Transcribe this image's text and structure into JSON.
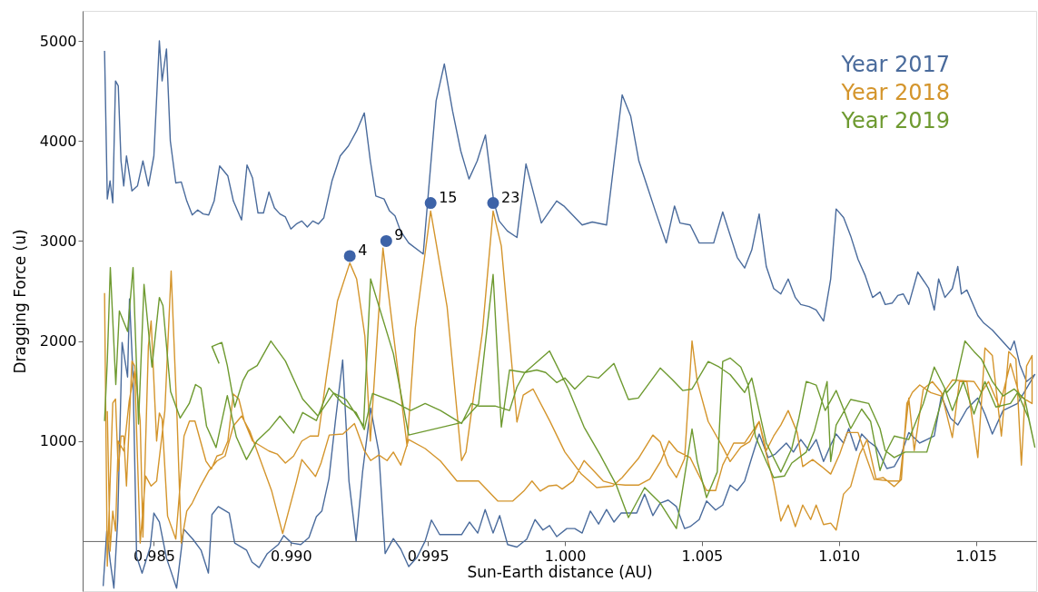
{
  "chart_data": {
    "type": "line",
    "xlabel": "Sun-Earth distance (AU)",
    "ylabel": "Dragging Force (u)",
    "xlim": [
      0.9824,
      1.0172
    ],
    "ylim": [
      -500,
      5300
    ],
    "xticks": [
      0.985,
      {
        "value": 0.99,
        "label": "0.990"
      },
      0.995,
      {
        "value": 1,
        "label": "1.000"
      },
      1.005,
      {
        "value": 1.01,
        "label": "1.010"
      },
      1.015
    ],
    "yticks": [
      1000,
      2000,
      3000,
      4000,
      5000
    ],
    "legend": "top right",
    "series": [
      {
        "name": "Year 2017",
        "color": "#4a6b9c",
        "marker": "none",
        "x": [
          0.9832,
          0.9833,
          0.9834,
          0.9835,
          0.9836,
          0.9837,
          0.9838,
          0.9839,
          0.984,
          0.9842,
          0.9844,
          0.9846,
          0.9848,
          0.985,
          0.9852,
          0.9853,
          0.98546,
          0.9856,
          0.9858,
          0.986,
          0.9862,
          0.9864,
          0.9866,
          0.9868,
          0.987,
          0.9872,
          0.9874,
          0.9877,
          0.9879,
          0.9882,
          0.9884,
          0.9886,
          0.9888,
          0.989,
          0.9892,
          0.9894,
          0.9896,
          0.9898,
          0.99,
          0.9902,
          0.9904,
          0.9906,
          0.9908,
          0.991,
          0.9912,
          0.9915,
          0.9918,
          0.9921,
          0.9924,
          0.99268,
          0.9929,
          0.9931,
          0.9934,
          0.9936,
          0.9938,
          0.994,
          0.9943,
          0.99483,
          0.9953,
          0.9956,
          0.9959,
          0.9962,
          0.9965,
          0.9968,
          0.9971,
          0.9974,
          0.9976,
          0.9979,
          0.99825,
          0.99858,
          0.99914,
          0.9997,
          0.99996,
          1.00063,
          1.001,
          1.00152,
          1.00209,
          1.0024,
          1.0027,
          1.003,
          1.0033,
          1.0037,
          1.004,
          1.0042,
          1.00457,
          1.0049,
          1.00543,
          1.00576,
          1.00629,
          1.00656,
          1.00682,
          1.00709,
          1.00735,
          1.00762,
          1.00788,
          1.00815,
          1.00841,
          1.00861,
          1.00891,
          1.00917,
          1.00944,
          1.0097,
          1.0099,
          1.01017,
          1.01043,
          1.0107,
          1.01096,
          1.01123,
          1.0115,
          1.01169,
          1.01195,
          1.01215,
          1.01235,
          1.01255,
          1.01288,
          1.01328,
          1.01348,
          1.01364,
          1.01387,
          1.01414,
          1.01434,
          1.01447,
          1.01467,
          1.01507,
          1.01527,
          1.0156,
          1.01626,
          1.0164,
          1.0166,
          1.01685,
          1.01715,
          1.01652,
          1.01599,
          1.0156,
          1.01533,
          1.01507,
          1.01467,
          1.01434,
          1.01407,
          1.01374,
          1.01348,
          1.01321,
          1.01295,
          1.01255,
          1.01228,
          1.01202,
          1.01175,
          1.01136,
          1.01109,
          1.01083,
          1.01063,
          1.01036,
          1.01017,
          1.0099,
          1.0097,
          1.00944,
          1.00917,
          1.00891,
          1.00861,
          1.00834,
          1.00808,
          1.00768,
          1.00742,
          1.00709,
          1.00682,
          1.00656,
          1.00629,
          1.00603,
          1.00576,
          1.0055,
          1.00517,
          1.0049,
          1.00457,
          1.00437,
          1.00407,
          1.00377,
          1.00348,
          1.00321,
          1.00291,
          1.00262,
          1.00232,
          1.00205,
          1.00179,
          1.00152,
          1.00123,
          1.00093,
          1.00063,
          1.00036,
          1.00007,
          0.9997,
          0.99944,
          0.9992,
          0.99891,
          0.99861,
          0.99825,
          0.99791,
          0.99762,
          0.99738,
          0.99709,
          0.99682,
          0.99652,
          0.99623,
          0.99543,
          0.99513,
          0.9949,
          0.9946,
          0.9943,
          0.99401,
          0.99374,
          0.99344,
          0.99321,
          0.99291,
          0.99262,
          0.99238,
          0.99212,
          0.99189,
          0.99162,
          0.99139,
          0.99113,
          0.99093,
          0.99066,
          0.99036,
          0.99003,
          0.98974,
          0.98954,
          0.98914,
          0.98884,
          0.98858,
          0.98838,
          0.98795,
          0.98775,
          0.98735,
          0.98712,
          0.98699,
          0.98672,
          0.98642,
          0.98609,
          0.98583,
          0.98546,
          0.9852,
          0.985,
          0.98487,
          0.98457,
          0.98437,
          0.98424,
          0.98411,
          0.98404,
          0.98384,
          0.98368,
          0.98354,
          0.98341,
          0.98328,
          0.98315
        ],
        "values": [
          4900,
          3420,
          3600,
          3380,
          4600,
          4550,
          3800,
          3550,
          3850,
          3500,
          3550,
          3800,
          3550,
          3850,
          5000,
          4600,
          4920,
          4000,
          3580,
          3590,
          3400,
          3260,
          3310,
          3270,
          3260,
          3400,
          3750,
          3650,
          3400,
          3210,
          3760,
          3630,
          3280,
          3280,
          3490,
          3330,
          3270,
          3240,
          3120,
          3170,
          3200,
          3140,
          3200,
          3170,
          3230,
          3600,
          3850,
          3950,
          4100,
          4280,
          3800,
          3450,
          3420,
          3300,
          3250,
          3100,
          2980,
          2870,
          4400,
          4770,
          4300,
          3900,
          3620,
          3800,
          4060,
          3400,
          3200,
          3100,
          3035,
          3770,
          3180,
          3400,
          3350,
          3160,
          3190,
          3160,
          4460,
          4250,
          3800,
          3550,
          3300,
          2980,
          3350,
          3180,
          3160,
          2980,
          2980,
          3290,
          2835,
          2730,
          2910,
          3270,
          2745,
          2525,
          2470,
          2620,
          2435,
          2365,
          2345,
          2310,
          2200,
          2620,
          3320,
          3235,
          3050,
          2815,
          2655,
          2435,
          2490,
          2365,
          2380,
          2455,
          2470,
          2365,
          2690,
          2525,
          2310,
          2620,
          2435,
          2525,
          2745,
          2470,
          2510,
          2255,
          2185,
          2110,
          1910,
          2000,
          1765,
          1595,
          1665,
          1375,
          1305,
          1070,
          1270,
          1430,
          1320,
          1160,
          1230,
          1450,
          1050,
          1015,
          980,
          1085,
          870,
          745,
          725,
          940,
          995,
          1070,
          905,
          1125,
          980,
          1070,
          960,
          795,
          1015,
          905,
          1015,
          890,
          980,
          870,
          835,
          1070,
          835,
          600,
          505,
          560,
          360,
          310,
          400,
          215,
          145,
          125,
          345,
          410,
          380,
          255,
          470,
          280,
          280,
          280,
          190,
          315,
          170,
          300,
          80,
          125,
          125,
          45,
          155,
          110,
          215,
          20,
          -60,
          -35,
          255,
          80,
          315,
          80,
          190,
          65,
          65,
          210,
          0,
          -165,
          -255,
          -80,
          25,
          -125,
          890,
          1330,
          700,
          0,
          600,
          1810,
          1190,
          625,
          300,
          245,
          35,
          -35,
          -20,
          55,
          -35,
          -125,
          -265,
          -210,
          -90,
          -20,
          280,
          345,
          265,
          -320,
          -90,
          20,
          120,
          -470,
          -170,
          190,
          280,
          -55,
          -320,
          -155,
          1640,
          2420,
          1640,
          1985,
          210,
          -470,
          -210,
          100,
          -450
        ]
      },
      {
        "name": "Year 2018",
        "color": "#d4952c",
        "marker": "none",
        "x": [
          0.9832,
          0.9833,
          0.9835,
          0.9836,
          0.9837,
          0.9838,
          0.9839,
          0.984,
          0.9842,
          0.9843,
          0.9845,
          0.9846,
          0.9848,
          0.9849,
          0.9851,
          0.9852,
          0.9853,
          0.9855,
          0.9858,
          0.9861,
          0.9863,
          0.9865,
          0.9867,
          0.9869,
          0.9871,
          0.9873,
          0.9875,
          0.9877,
          0.9879,
          0.9881,
          0.9883,
          0.9886,
          0.9889,
          0.9892,
          0.9895,
          0.9898,
          0.9901,
          0.9904,
          0.9907,
          0.991,
          0.9913,
          0.9917,
          0.99215,
          0.9924,
          0.9927,
          0.9929,
          0.99336,
          0.99424,
          0.99454,
          0.9951,
          0.9957,
          0.99623,
          0.99639,
          0.99699,
          0.99738,
          0.99768,
          0.99825,
          0.99848,
          0.99884,
          0.99944,
          1.0,
          1.0006,
          1.00116,
          1.00175,
          1.00209,
          1.00268,
          1.00321,
          1.00348,
          1.00377,
          1.00407,
          1.00437,
          1.00464,
          1.00483,
          1.00523,
          1.00576,
          1.00603,
          1.00642,
          1.00675,
          1.00709,
          1.00735,
          1.00762,
          1.00788,
          1.00815,
          1.00841,
          1.00868,
          1.00897,
          1.00917,
          1.00944,
          1.0097,
          1.0099,
          1.01017,
          1.01043,
          1.01076,
          1.01103,
          1.01136,
          1.01189,
          1.01222,
          1.01255,
          1.01275,
          1.01308,
          1.01341,
          1.01374,
          1.01414,
          1.0144,
          1.01467,
          1.01507,
          1.01533,
          1.0156,
          1.01593,
          1.0162,
          1.01646,
          1.01666,
          1.01685,
          1.01705,
          1.01705,
          1.0166,
          1.01626,
          1.01586,
          1.01546,
          1.0152,
          1.01493,
          1.01414,
          1.01374,
          1.01335,
          1.01295,
          1.01268,
          1.01248,
          1.01228,
          1.01202,
          1.01162,
          1.01129,
          1.01096,
          1.0107,
          1.0103,
          1.01003,
          1.0097,
          1.00937,
          1.00904,
          1.00868,
          1.00848,
          1.00815,
          1.00788,
          1.00762,
          1.00735,
          1.00709,
          1.00656,
          1.00616,
          1.00576,
          1.0055,
          1.00517,
          1.00483,
          1.00457,
          1.0041,
          1.0038,
          1.0035,
          1.0031,
          1.0027,
          1.0022,
          1.0018,
          1.0014,
          1.0007,
          1.0003,
          0.9999,
          0.9997,
          0.9994,
          0.9991,
          0.9988,
          0.9985,
          0.9981,
          0.99755,
          0.99685,
          0.99606,
          0.99546,
          0.9949,
          0.9943,
          0.99401,
          0.99374,
          0.99351,
          0.99321,
          0.99291,
          0.99268,
          0.99232,
          0.9919,
          0.9914,
          0.9911,
          0.9909,
          0.9904,
          0.9902,
          0.9897,
          0.9893,
          0.9889,
          0.9885,
          0.9882,
          0.9879,
          0.9876,
          0.9873,
          0.987,
          0.9867,
          0.9864,
          0.9862,
          0.986,
          0.98585,
          0.98563,
          0.9854,
          0.9851,
          0.9849,
          0.9847,
          0.9845,
          0.9843,
          0.9841,
          0.9839,
          0.9837,
          0.9836,
          0.9835,
          0.9834,
          0.9833
        ],
        "values": [
          2480,
          -250,
          1380,
          1420,
          700,
          1050,
          1050,
          550,
          1800,
          1750,
          1200,
          40,
          1950,
          2200,
          1000,
          1280,
          1220,
          250,
          20,
          1050,
          1200,
          1200,
          1000,
          800,
          720,
          850,
          870,
          1000,
          1470,
          1420,
          1200,
          1000,
          950,
          900,
          870,
          780,
          850,
          1000,
          1050,
          1050,
          1650,
          2400,
          2780,
          2620,
          2050,
          1000,
          2930,
          950,
          2130,
          3300,
          2345,
          805,
          890,
          2090,
          3300,
          2950,
          1190,
          1460,
          1520,
          1205,
          890,
          670,
          535,
          550,
          635,
          825,
          1060,
          990,
          760,
          635,
          825,
          2000,
          1595,
          1195,
          940,
          795,
          940,
          995,
          1195,
          870,
          580,
          200,
          360,
          145,
          360,
          215,
          360,
          165,
          180,
          110,
          470,
          545,
          870,
          1015,
          615,
          600,
          600,
          1430,
          905,
          1520,
          1595,
          1485,
          1035,
          1595,
          1595,
          835,
          1930,
          1855,
          1050,
          1895,
          1820,
          760,
          1750,
          1855,
          1375,
          1450,
          1775,
          1340,
          1595,
          1485,
          1595,
          1610,
          1450,
          1485,
          1560,
          1485,
          1375,
          615,
          545,
          635,
          615,
          870,
          1085,
          1085,
          870,
          670,
          745,
          815,
          745,
          1085,
          1305,
          1160,
          1050,
          905,
          1195,
          980,
          980,
          760,
          505,
          505,
          690,
          835,
          900,
          1000,
          800,
          620,
          560,
          560,
          570,
          600,
          805,
          600,
          520,
          560,
          550,
          500,
          600,
          500,
          400,
          400,
          600,
          600,
          800,
          925,
          1015,
          760,
          890,
          805,
          860,
          805,
          905,
          1175,
          1070,
          1060,
          780,
          645,
          815,
          590,
          75,
          500,
          800,
          1100,
          1250,
          1150,
          850,
          800,
          700,
          550,
          380,
          300,
          -20,
          1200,
          2700,
          1300,
          600,
          550,
          650,
          -20,
          1700,
          1400,
          900,
          1000,
          100,
          300,
          -100,
          1300
        ]
      },
      {
        "name": "Year 2019",
        "color": "#6e9a30",
        "marker": "none",
        "x": [
          0.9832,
          0.9833,
          0.98341,
          0.98361,
          0.98374,
          0.98404,
          0.98424,
          0.98444,
          0.98464,
          0.98493,
          0.9852,
          0.98533,
          0.98561,
          0.98596,
          0.98629,
          0.98652,
          0.98672,
          0.98692,
          0.98727,
          0.98768,
          0.98801,
          0.98838,
          0.98877,
          0.9892,
          0.9896,
          0.9901,
          0.99043,
          0.99093,
          0.99139,
          0.99189,
          0.99238,
          0.99268,
          0.99298,
          0.99374,
          0.99437,
          0.9949,
          0.99546,
          0.99623,
          0.99659,
          0.99685,
          0.99745,
          0.99798,
          0.99825,
          0.99854,
          0.99897,
          0.9993,
          0.9997,
          1.0,
          1.00036,
          1.00083,
          1.00123,
          1.00179,
          1.00232,
          1.00268,
          1.00348,
          1.0039,
          1.0043,
          1.00464,
          1.00523,
          1.00563,
          1.00603,
          1.00656,
          1.00682,
          1.00735,
          1.00788,
          1.00828,
          1.00854,
          1.00881,
          1.00917,
          1.0095,
          1.0099,
          1.01017,
          1.01043,
          1.01083,
          1.01116,
          1.0115,
          1.01175,
          1.01202,
          1.01255,
          1.01308,
          1.01348,
          1.01394,
          1.01427,
          1.0146,
          1.01493,
          1.0152,
          1.0156,
          1.01599,
          1.0164,
          1.01679,
          1.01715,
          1.01692,
          1.01652,
          1.01626,
          1.01573,
          1.01533,
          1.01493,
          1.01454,
          1.01414,
          1.01387,
          1.01361,
          1.01321,
          1.01281,
          1.01242,
          1.01202,
          1.01169,
          1.0115,
          1.01109,
          1.01043,
          1.0099,
          1.0097,
          1.00957,
          1.00911,
          1.00881,
          1.00828,
          1.00801,
          1.00762,
          1.00735,
          1.00695,
          1.00669,
          1.00642,
          1.00603,
          1.00576,
          1.00556,
          1.00517,
          1.00483,
          1.00464,
          1.00407,
          1.00348,
          1.00291,
          1.00232,
          1.00186,
          1.00129,
          1.0007,
          1.00013,
          0.99944,
          0.99854,
          0.99798,
          0.99768,
          0.99738,
          0.99685,
          0.99623,
          0.9943,
          0.99374,
          0.99291,
          0.99265,
          0.99202,
          0.99156,
          0.99099,
          0.99043,
          0.9898,
          0.98927,
          0.98877,
          0.98844,
          0.98825,
          0.98795,
          0.98768,
          0.98748,
          0.98712,
          0.98738
        ],
        "values": [
          1200,
          1800,
          2735,
          1565,
          2300,
          2095,
          2735,
          1170,
          2565,
          1740,
          2435,
          2355,
          1495,
          1230,
          1375,
          1565,
          1530,
          1150,
          935,
          1455,
          1040,
          815,
          1005,
          1115,
          1250,
          1080,
          1285,
          1205,
          1530,
          1375,
          1285,
          1115,
          1475,
          1395,
          1305,
          1375,
          1305,
          1175,
          1375,
          1350,
          1350,
          1305,
          1540,
          1685,
          1710,
          1685,
          1585,
          1630,
          1520,
          1650,
          1630,
          1775,
          1415,
          1430,
          1730,
          1620,
          1505,
          1520,
          1795,
          1740,
          1665,
          1485,
          1630,
          980,
          690,
          925,
          1230,
          1595,
          1560,
          1305,
          1505,
          1320,
          1125,
          1320,
          1195,
          705,
          905,
          1050,
          1015,
          1375,
          1740,
          1485,
          1595,
          2000,
          1895,
          1820,
          1595,
          1450,
          1520,
          1415,
          940,
          1230,
          1485,
          1375,
          1340,
          1595,
          1270,
          1595,
          1305,
          1520,
          1270,
          890,
          890,
          890,
          835,
          905,
          1125,
          1375,
          1415,
          1160,
          795,
          1595,
          1105,
          890,
          780,
          650,
          635,
          795,
          1050,
          1560,
          1740,
          1830,
          1795,
          690,
          435,
          795,
          1120,
          125,
          380,
          535,
          235,
          570,
          860,
          1140,
          1520,
          1900,
          1685,
          1710,
          1140,
          2665,
          1370,
          1185,
          1060,
          1875,
          2620,
          1150,
          1415,
          1480,
          1250,
          1420,
          1800,
          2000,
          1755,
          1700,
          1605,
          1340,
          1755,
          1985,
          1945,
          1775
        ]
      },
      {
        "type": "scatter",
        "color": "#3d63a8",
        "marker": "circle",
        "x": [
          0.99215,
          0.99348,
          0.9951,
          0.99738
        ],
        "values": [
          2850,
          3000,
          3380,
          3380
        ]
      }
    ],
    "annotations": [
      {
        "text": "4",
        "x": 0.99215,
        "y": 2850
      },
      {
        "text": "9",
        "x": 0.99348,
        "y": 3000
      },
      {
        "text": "15",
        "x": 0.9951,
        "y": 3380
      },
      {
        "text": "23",
        "x": 0.99738,
        "y": 3380
      }
    ]
  }
}
